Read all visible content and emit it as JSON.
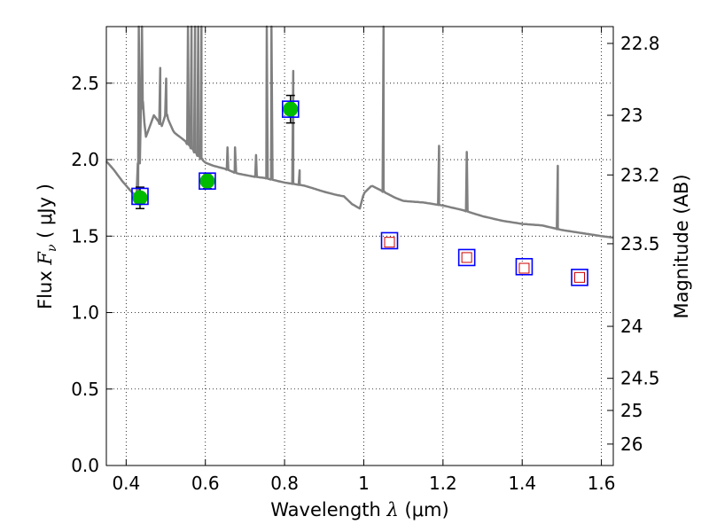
{
  "chart_data": {
    "type": "scatter",
    "xlabel": {
      "pre": "Wavelength  ",
      "sym": "λ",
      "post": " (μm)"
    },
    "ylabel": {
      "pre": "Flux  ",
      "sym": "F",
      "sub": "ν",
      "post": "  ( μJy )"
    },
    "y2label": "Magnitude (AB)",
    "xlim": [
      0.35,
      1.63
    ],
    "ylim": [
      0.0,
      2.87
    ],
    "xticks": [
      0.4,
      0.6,
      0.8,
      1.0,
      1.2,
      1.4,
      1.6
    ],
    "xtick_labels": [
      "0.4",
      "0.6",
      "0.8",
      "1",
      "1.2",
      "1.4",
      "1.6"
    ],
    "yticks": [
      0.0,
      0.5,
      1.0,
      1.5,
      2.0,
      2.5
    ],
    "ytick_labels": [
      "0.0",
      "0.5",
      "1.0",
      "1.5",
      "2.0",
      "2.5"
    ],
    "y2ticks": [
      {
        "flux": 2.76,
        "label": "22.8"
      },
      {
        "flux": 2.29,
        "label": "23"
      },
      {
        "flux": 1.9,
        "label": "23.2"
      },
      {
        "flux": 1.45,
        "label": "23.5"
      },
      {
        "flux": 0.91,
        "label": "24"
      },
      {
        "flux": 0.57,
        "label": "24.5"
      },
      {
        "flux": 0.36,
        "label": "25"
      },
      {
        "flux": 0.14,
        "label": "26"
      }
    ],
    "grid": true,
    "template_spectrum": {
      "name": "model",
      "color": "#808080",
      "x": [
        0.35,
        0.37,
        0.39,
        0.41,
        0.425,
        0.43,
        0.435,
        0.44,
        0.45,
        0.47,
        0.49,
        0.5,
        0.52,
        0.55,
        0.58,
        0.6,
        0.62,
        0.65,
        0.68,
        0.72,
        0.75,
        0.8,
        0.85,
        0.9,
        0.93,
        0.95,
        0.97,
        0.99,
        1.0,
        1.02,
        1.05,
        1.08,
        1.1,
        1.15,
        1.2,
        1.25,
        1.3,
        1.35,
        1.4,
        1.45,
        1.5,
        1.55,
        1.6,
        1.63
      ],
      "y": [
        1.99,
        1.93,
        1.86,
        1.8,
        1.76,
        1.74,
        2.33,
        2.38,
        2.15,
        2.29,
        2.22,
        2.3,
        2.18,
        2.12,
        2.03,
        1.98,
        1.96,
        1.94,
        1.91,
        1.89,
        1.88,
        1.85,
        1.83,
        1.79,
        1.77,
        1.76,
        1.71,
        1.68,
        1.78,
        1.83,
        1.79,
        1.75,
        1.73,
        1.72,
        1.7,
        1.67,
        1.63,
        1.6,
        1.58,
        1.57,
        1.54,
        1.52,
        1.5,
        1.49
      ],
      "lines": [
        {
          "x": 0.432,
          "peak": 2.87
        },
        {
          "x": 0.44,
          "peak": 2.87
        },
        {
          "x": 0.486,
          "peak": 2.6
        },
        {
          "x": 0.501,
          "peak": 2.53
        },
        {
          "x": 0.556,
          "peak": 2.87
        },
        {
          "x": 0.565,
          "peak": 2.87
        },
        {
          "x": 0.574,
          "peak": 2.87
        },
        {
          "x": 0.582,
          "peak": 2.87
        },
        {
          "x": 0.59,
          "peak": 2.87
        },
        {
          "x": 0.656,
          "peak": 2.08
        },
        {
          "x": 0.675,
          "peak": 2.08
        },
        {
          "x": 0.728,
          "peak": 2.03
        },
        {
          "x": 0.755,
          "peak": 2.87
        },
        {
          "x": 0.767,
          "peak": 2.87
        },
        {
          "x": 0.822,
          "peak": 2.58
        },
        {
          "x": 0.838,
          "peak": 1.93
        },
        {
          "x": 1.05,
          "peak": 2.87
        },
        {
          "x": 1.19,
          "peak": 2.09
        },
        {
          "x": 1.26,
          "peak": 2.05
        },
        {
          "x": 1.49,
          "peak": 1.96
        }
      ]
    },
    "series": [
      {
        "name": "observed",
        "marker": "circle",
        "color": "#00bb00",
        "x": [
          0.435,
          0.605,
          0.815
        ],
        "y": [
          1.75,
          1.86,
          2.33
        ],
        "yerr": [
          0.07,
          0.05,
          0.09
        ]
      },
      {
        "name": "model_observed",
        "marker": "square",
        "color": "#0000ff",
        "x": [
          0.435,
          0.605,
          0.815
        ],
        "y": [
          1.76,
          1.86,
          2.33
        ]
      },
      {
        "name": "model_predicted",
        "marker": "square",
        "color": "#0000ff",
        "x": [
          1.065,
          1.26,
          1.405,
          1.545
        ],
        "y": [
          1.47,
          1.36,
          1.3,
          1.23
        ]
      },
      {
        "name": "predicted_inner",
        "marker": "square",
        "color": "#cc0000",
        "x": [
          1.065,
          1.26,
          1.405,
          1.545
        ],
        "y": [
          1.46,
          1.36,
          1.29,
          1.23
        ]
      }
    ]
  }
}
